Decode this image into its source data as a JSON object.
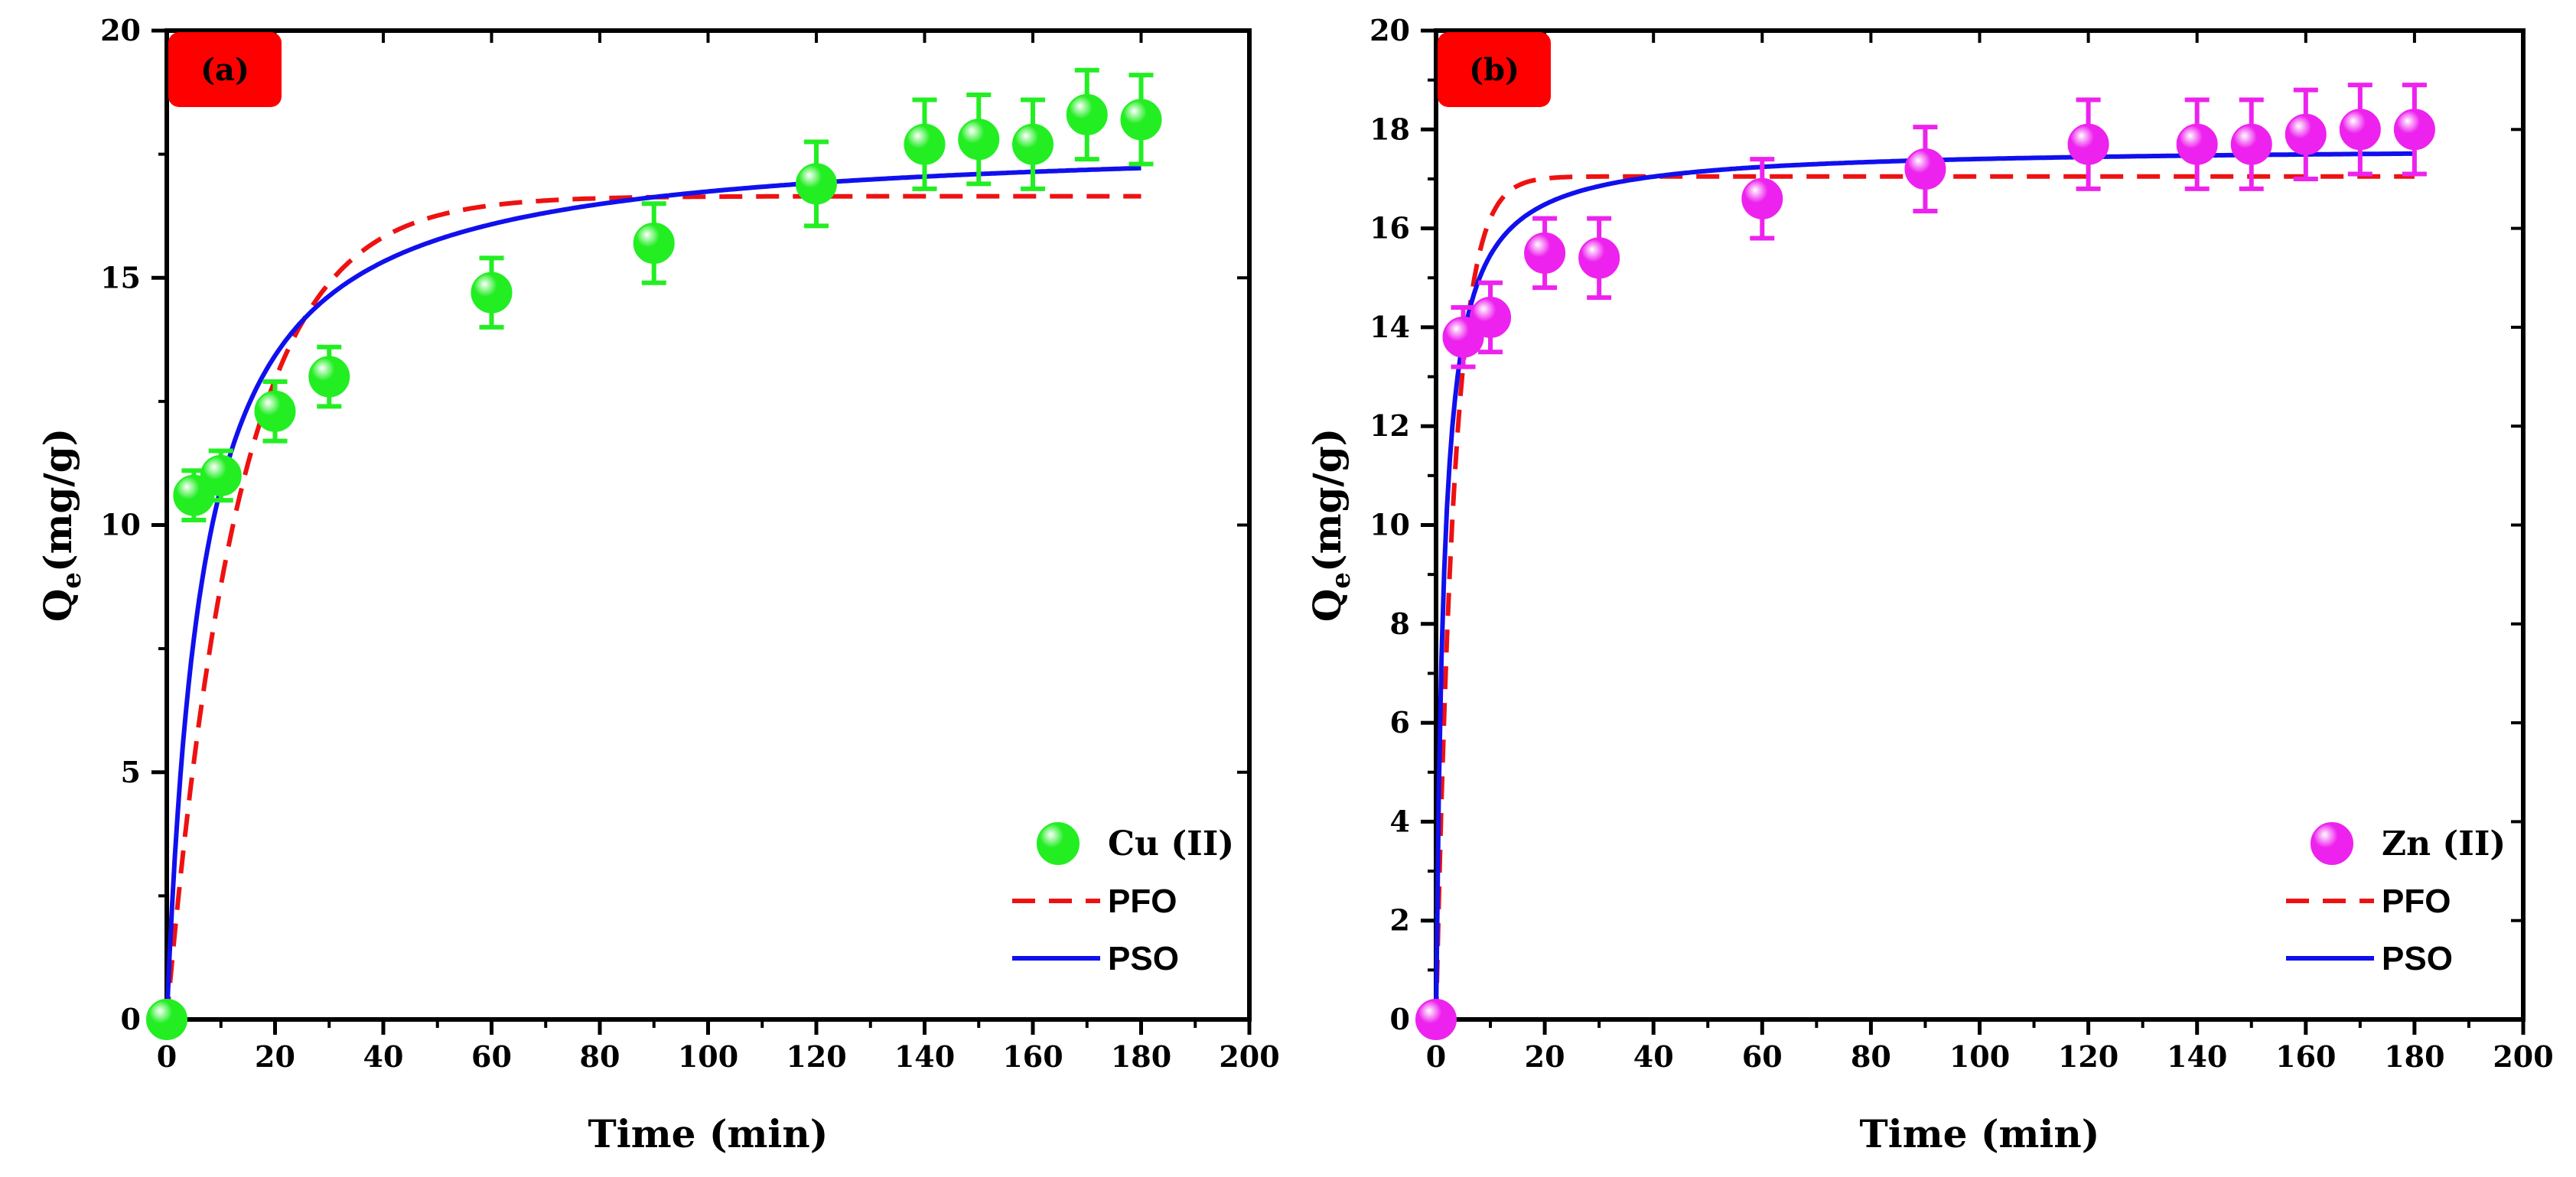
{
  "chart_data": [
    {
      "type": "scatter",
      "panel_label": "(a)",
      "panel_label_color": "#ff0000",
      "xlabel": "Time (min)",
      "ylabel": "Q",
      "ylabel_sub": "e",
      "ylabel_unit": "(mg/g)",
      "xlim": [
        0,
        200
      ],
      "ylim": [
        0,
        20
      ],
      "xticks": [
        0,
        20,
        40,
        60,
        80,
        100,
        120,
        140,
        160,
        180,
        200
      ],
      "yticks": [
        0,
        5,
        10,
        15,
        20
      ],
      "legend_position": "bottom-right",
      "series": [
        {
          "name": "Cu (II)",
          "kind": "points",
          "color": "#22ee22",
          "x": [
            0,
            5,
            10,
            20,
            30,
            60,
            90,
            120,
            140,
            150,
            160,
            170,
            180
          ],
          "y": [
            0,
            10.6,
            11.0,
            12.3,
            13.0,
            14.7,
            15.7,
            16.9,
            17.7,
            17.8,
            17.7,
            18.3,
            18.2
          ],
          "error": [
            0,
            0.5,
            0.5,
            0.6,
            0.6,
            0.7,
            0.8,
            0.85,
            0.9,
            0.9,
            0.9,
            0.9,
            0.9
          ]
        },
        {
          "name": "PFO",
          "kind": "dashed-line",
          "color": "#ee1111",
          "model": "pfo",
          "qe": 16.65,
          "k": 0.075
        },
        {
          "name": "PSO",
          "kind": "line",
          "color": "#1010ee",
          "model": "pso",
          "qe": 17.85,
          "k": 0.0085
        }
      ]
    },
    {
      "type": "scatter",
      "panel_label": "(b)",
      "panel_label_color": "#ff0000",
      "xlabel": "Time (min)",
      "ylabel": "Q",
      "ylabel_sub": "e",
      "ylabel_unit": "(mg/g)",
      "xlim": [
        0,
        200
      ],
      "ylim": [
        0,
        20
      ],
      "xticks": [
        0,
        20,
        40,
        60,
        80,
        100,
        120,
        140,
        160,
        180,
        200
      ],
      "yticks": [
        0,
        2,
        4,
        6,
        8,
        10,
        12,
        14,
        16,
        18,
        20
      ],
      "legend_position": "bottom-right",
      "series": [
        {
          "name": "Zn (II)",
          "kind": "points",
          "color": "#ee22ee",
          "x": [
            0,
            5,
            10,
            20,
            30,
            60,
            90,
            120,
            140,
            150,
            160,
            170,
            180
          ],
          "y": [
            0,
            13.8,
            14.2,
            15.5,
            15.4,
            16.6,
            17.2,
            17.7,
            17.7,
            17.7,
            17.9,
            18.0,
            18.0
          ],
          "error": [
            0,
            0.6,
            0.7,
            0.7,
            0.8,
            0.8,
            0.85,
            0.9,
            0.9,
            0.9,
            0.9,
            0.9,
            0.9
          ]
        },
        {
          "name": "PFO",
          "kind": "dashed-line",
          "color": "#ee1111",
          "model": "pfo",
          "qe": 17.05,
          "k": 0.3
        },
        {
          "name": "PSO",
          "kind": "line",
          "color": "#1010ee",
          "model": "pso",
          "qe": 17.65,
          "k": 0.04
        }
      ]
    }
  ]
}
